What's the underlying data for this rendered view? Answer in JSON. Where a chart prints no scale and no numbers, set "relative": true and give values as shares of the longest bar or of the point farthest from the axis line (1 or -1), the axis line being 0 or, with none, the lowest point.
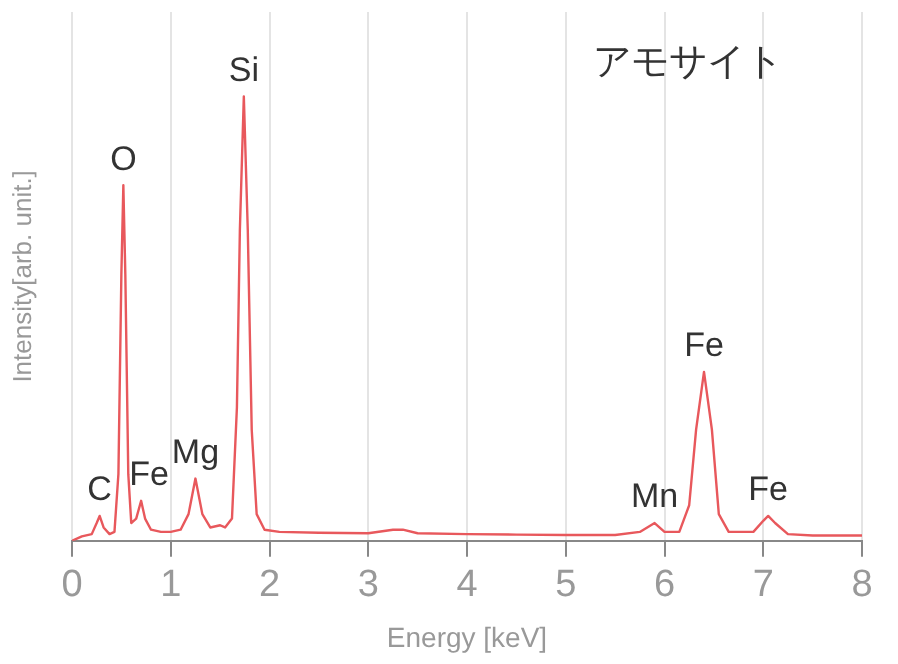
{
  "chart_data": {
    "type": "line",
    "xlabel": "Energy [keV]",
    "ylabel": "Intensity[arb. unit.]",
    "relative": true,
    "xlim": [
      0,
      8
    ],
    "xticks": [
      0,
      1,
      2,
      3,
      4,
      5,
      6,
      7,
      8
    ],
    "grid": "x",
    "marker": "none",
    "line_style": "solid",
    "annotations": [
      "アモサイト",
      {
        "text": "C",
        "x": 0.28,
        "y": 0.056
      },
      {
        "text": "O",
        "x": 0.52,
        "y": 0.8
      },
      {
        "text": "Fe",
        "x": 0.7,
        "y": 0.09
      },
      {
        "text": "Mg",
        "x": 1.25,
        "y": 0.14
      },
      {
        "text": "Si",
        "x": 1.74,
        "y": 1.0
      },
      {
        "text": "Mn",
        "x": 5.9,
        "y": 0.04
      },
      {
        "text": "Fe",
        "x": 6.4,
        "y": 0.38
      },
      {
        "text": "Fe",
        "x": 7.05,
        "y": 0.056
      }
    ],
    "series": [
      {
        "color": "#e8585c",
        "x": [
          0,
          0.1,
          0.2,
          0.25,
          0.28,
          0.32,
          0.38,
          0.43,
          0.47,
          0.5,
          0.52,
          0.54,
          0.57,
          0.6,
          0.65,
          0.7,
          0.74,
          0.8,
          0.9,
          1.0,
          1.1,
          1.18,
          1.25,
          1.32,
          1.4,
          1.5,
          1.55,
          1.62,
          1.67,
          1.7,
          1.74,
          1.78,
          1.82,
          1.87,
          1.95,
          2.1,
          2.5,
          3.0,
          3.25,
          3.35,
          3.5,
          4.0,
          4.5,
          5.0,
          5.5,
          5.75,
          5.9,
          6.0,
          6.15,
          6.25,
          6.32,
          6.4,
          6.48,
          6.55,
          6.65,
          6.9,
          7.0,
          7.05,
          7.12,
          7.25,
          7.5,
          8.0
        ],
        "values": [
          0,
          0.01,
          0.015,
          0.04,
          0.056,
          0.03,
          0.015,
          0.02,
          0.15,
          0.6,
          0.8,
          0.6,
          0.15,
          0.04,
          0.05,
          0.09,
          0.05,
          0.025,
          0.02,
          0.02,
          0.025,
          0.06,
          0.14,
          0.06,
          0.03,
          0.035,
          0.03,
          0.05,
          0.3,
          0.7,
          1.0,
          0.7,
          0.25,
          0.06,
          0.025,
          0.02,
          0.018,
          0.017,
          0.025,
          0.025,
          0.017,
          0.015,
          0.014,
          0.013,
          0.013,
          0.02,
          0.04,
          0.02,
          0.02,
          0.08,
          0.25,
          0.38,
          0.25,
          0.06,
          0.02,
          0.02,
          0.045,
          0.056,
          0.04,
          0.015,
          0.012,
          0.012
        ]
      }
    ]
  }
}
